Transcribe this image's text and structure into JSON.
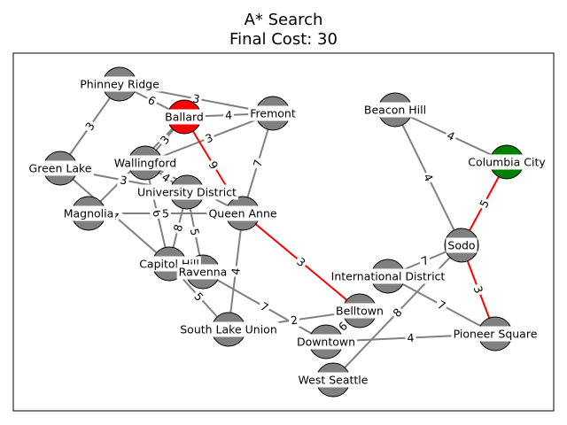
{
  "title": {
    "algorithm": "A* Search",
    "cost_line": "Final Cost: 30"
  },
  "colors": {
    "node_default": "#808080",
    "node_start": "#ff0000",
    "node_goal": "#008000",
    "edge_default": "#808080",
    "edge_path": "#ff0000"
  },
  "graph": {
    "nodes": [
      {
        "id": "phinney",
        "label": "Phinney Ridge",
        "role": "default"
      },
      {
        "id": "ballard",
        "label": "Ballard",
        "role": "start"
      },
      {
        "id": "fremont",
        "label": "Fremont",
        "role": "default"
      },
      {
        "id": "beacon",
        "label": "Beacon Hill",
        "role": "default"
      },
      {
        "id": "columbia",
        "label": "Columbia City",
        "role": "goal"
      },
      {
        "id": "greenlake",
        "label": "Green Lake",
        "role": "default"
      },
      {
        "id": "wallingford",
        "label": "Wallingford",
        "role": "default"
      },
      {
        "id": "udistrict",
        "label": "University District",
        "role": "default"
      },
      {
        "id": "magnolia",
        "label": "Magnolia",
        "role": "default"
      },
      {
        "id": "queenanne",
        "label": "Queen Anne",
        "role": "default"
      },
      {
        "id": "sodo",
        "label": "Sodo",
        "role": "default"
      },
      {
        "id": "capitol",
        "label": "Capitol Hill",
        "role": "default"
      },
      {
        "id": "ravenna",
        "label": "Ravenna",
        "role": "default"
      },
      {
        "id": "intl",
        "label": "International District",
        "role": "default"
      },
      {
        "id": "belltown",
        "label": "Belltown",
        "role": "default"
      },
      {
        "id": "slu",
        "label": "South Lake Union",
        "role": "default"
      },
      {
        "id": "downtown",
        "label": "Downtown",
        "role": "default"
      },
      {
        "id": "pioneer",
        "label": "Pioneer Square",
        "role": "default"
      },
      {
        "id": "westseattle",
        "label": "West Seattle",
        "role": "default"
      }
    ],
    "edges": [
      {
        "from": "phinney",
        "to": "greenlake",
        "weight": "3",
        "on_path": false
      },
      {
        "from": "phinney",
        "to": "ballard",
        "weight": "6",
        "on_path": false
      },
      {
        "from": "phinney",
        "to": "fremont",
        "weight": "3",
        "on_path": false
      },
      {
        "from": "ballard",
        "to": "fremont",
        "weight": "4",
        "on_path": false
      },
      {
        "from": "ballard",
        "to": "wallingford",
        "weight": "3",
        "on_path": false
      },
      {
        "from": "ballard",
        "to": "magnolia",
        "weight": "",
        "on_path": false
      },
      {
        "from": "fremont",
        "to": "wallingford",
        "weight": "3",
        "on_path": false
      },
      {
        "from": "fremont",
        "to": "queenanne",
        "weight": "7",
        "on_path": false
      },
      {
        "from": "ballard",
        "to": "queenanne",
        "weight": "9",
        "on_path": true
      },
      {
        "from": "greenlake",
        "to": "udistrict",
        "weight": "3",
        "on_path": false
      },
      {
        "from": "greenlake",
        "to": "capitol",
        "weight": "4",
        "on_path": false
      },
      {
        "from": "wallingford",
        "to": "udistrict",
        "weight": "4",
        "on_path": false
      },
      {
        "from": "wallingford",
        "to": "queenanne",
        "weight": "5",
        "on_path": false
      },
      {
        "from": "wallingford",
        "to": "capitol",
        "weight": "6",
        "on_path": false
      },
      {
        "from": "magnolia",
        "to": "queenanne",
        "weight": "5",
        "on_path": false
      },
      {
        "from": "udistrict",
        "to": "ravenna",
        "weight": "5",
        "on_path": false
      },
      {
        "from": "udistrict",
        "to": "capitol",
        "weight": "8",
        "on_path": false
      },
      {
        "from": "queenanne",
        "to": "slu",
        "weight": "4",
        "on_path": false
      },
      {
        "from": "queenanne",
        "to": "belltown",
        "weight": "3",
        "on_path": true
      },
      {
        "from": "capitol",
        "to": "slu",
        "weight": "5",
        "on_path": false
      },
      {
        "from": "ravenna",
        "to": "downtown",
        "weight": "7",
        "on_path": false
      },
      {
        "from": "slu",
        "to": "belltown",
        "weight": "2",
        "on_path": false
      },
      {
        "from": "belltown",
        "to": "downtown",
        "weight": "6",
        "on_path": false
      },
      {
        "from": "downtown",
        "to": "pioneer",
        "weight": "4",
        "on_path": false
      },
      {
        "from": "intl",
        "to": "sodo",
        "weight": "7",
        "on_path": false
      },
      {
        "from": "intl",
        "to": "pioneer",
        "weight": "7",
        "on_path": false
      },
      {
        "from": "westseattle",
        "to": "sodo",
        "weight": "8",
        "on_path": false
      },
      {
        "from": "beacon",
        "to": "columbia",
        "weight": "4",
        "on_path": false
      },
      {
        "from": "beacon",
        "to": "sodo",
        "weight": "4",
        "on_path": false
      },
      {
        "from": "sodo",
        "to": "columbia",
        "weight": "5",
        "on_path": true
      },
      {
        "from": "sodo",
        "to": "pioneer",
        "weight": "3",
        "on_path": true
      }
    ]
  }
}
